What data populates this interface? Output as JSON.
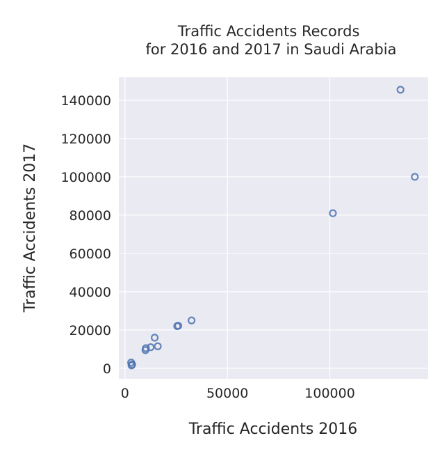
{
  "chart_data": {
    "type": "scatter",
    "title": "Traffic Accidents Records\nfor 2016 and 2017 in Saudi Arabia",
    "xlabel": "Traffic Accidents 2016",
    "ylabel": "Traffic Accidents 2017",
    "xlim": [
      -3000,
      148000
    ],
    "ylim": [
      -5500,
      152000
    ],
    "xticks": [
      0,
      50000,
      100000
    ],
    "yticks": [
      0,
      20000,
      40000,
      60000,
      80000,
      100000,
      120000,
      140000
    ],
    "grid": true,
    "points": [
      {
        "x": 3000,
        "y": 3000
      },
      {
        "x": 3200,
        "y": 1500
      },
      {
        "x": 3500,
        "y": 2000
      },
      {
        "x": 10000,
        "y": 9500
      },
      {
        "x": 10200,
        "y": 10500
      },
      {
        "x": 12500,
        "y": 11000
      },
      {
        "x": 14500,
        "y": 16000
      },
      {
        "x": 16000,
        "y": 11500
      },
      {
        "x": 25500,
        "y": 22000
      },
      {
        "x": 26000,
        "y": 22200
      },
      {
        "x": 32500,
        "y": 25000
      },
      {
        "x": 101500,
        "y": 81000
      },
      {
        "x": 134500,
        "y": 145500
      },
      {
        "x": 141500,
        "y": 100000
      }
    ],
    "colors": {
      "background": "#eaeaf2",
      "grid": "#ffffff",
      "marker": "#4c72b0"
    }
  }
}
